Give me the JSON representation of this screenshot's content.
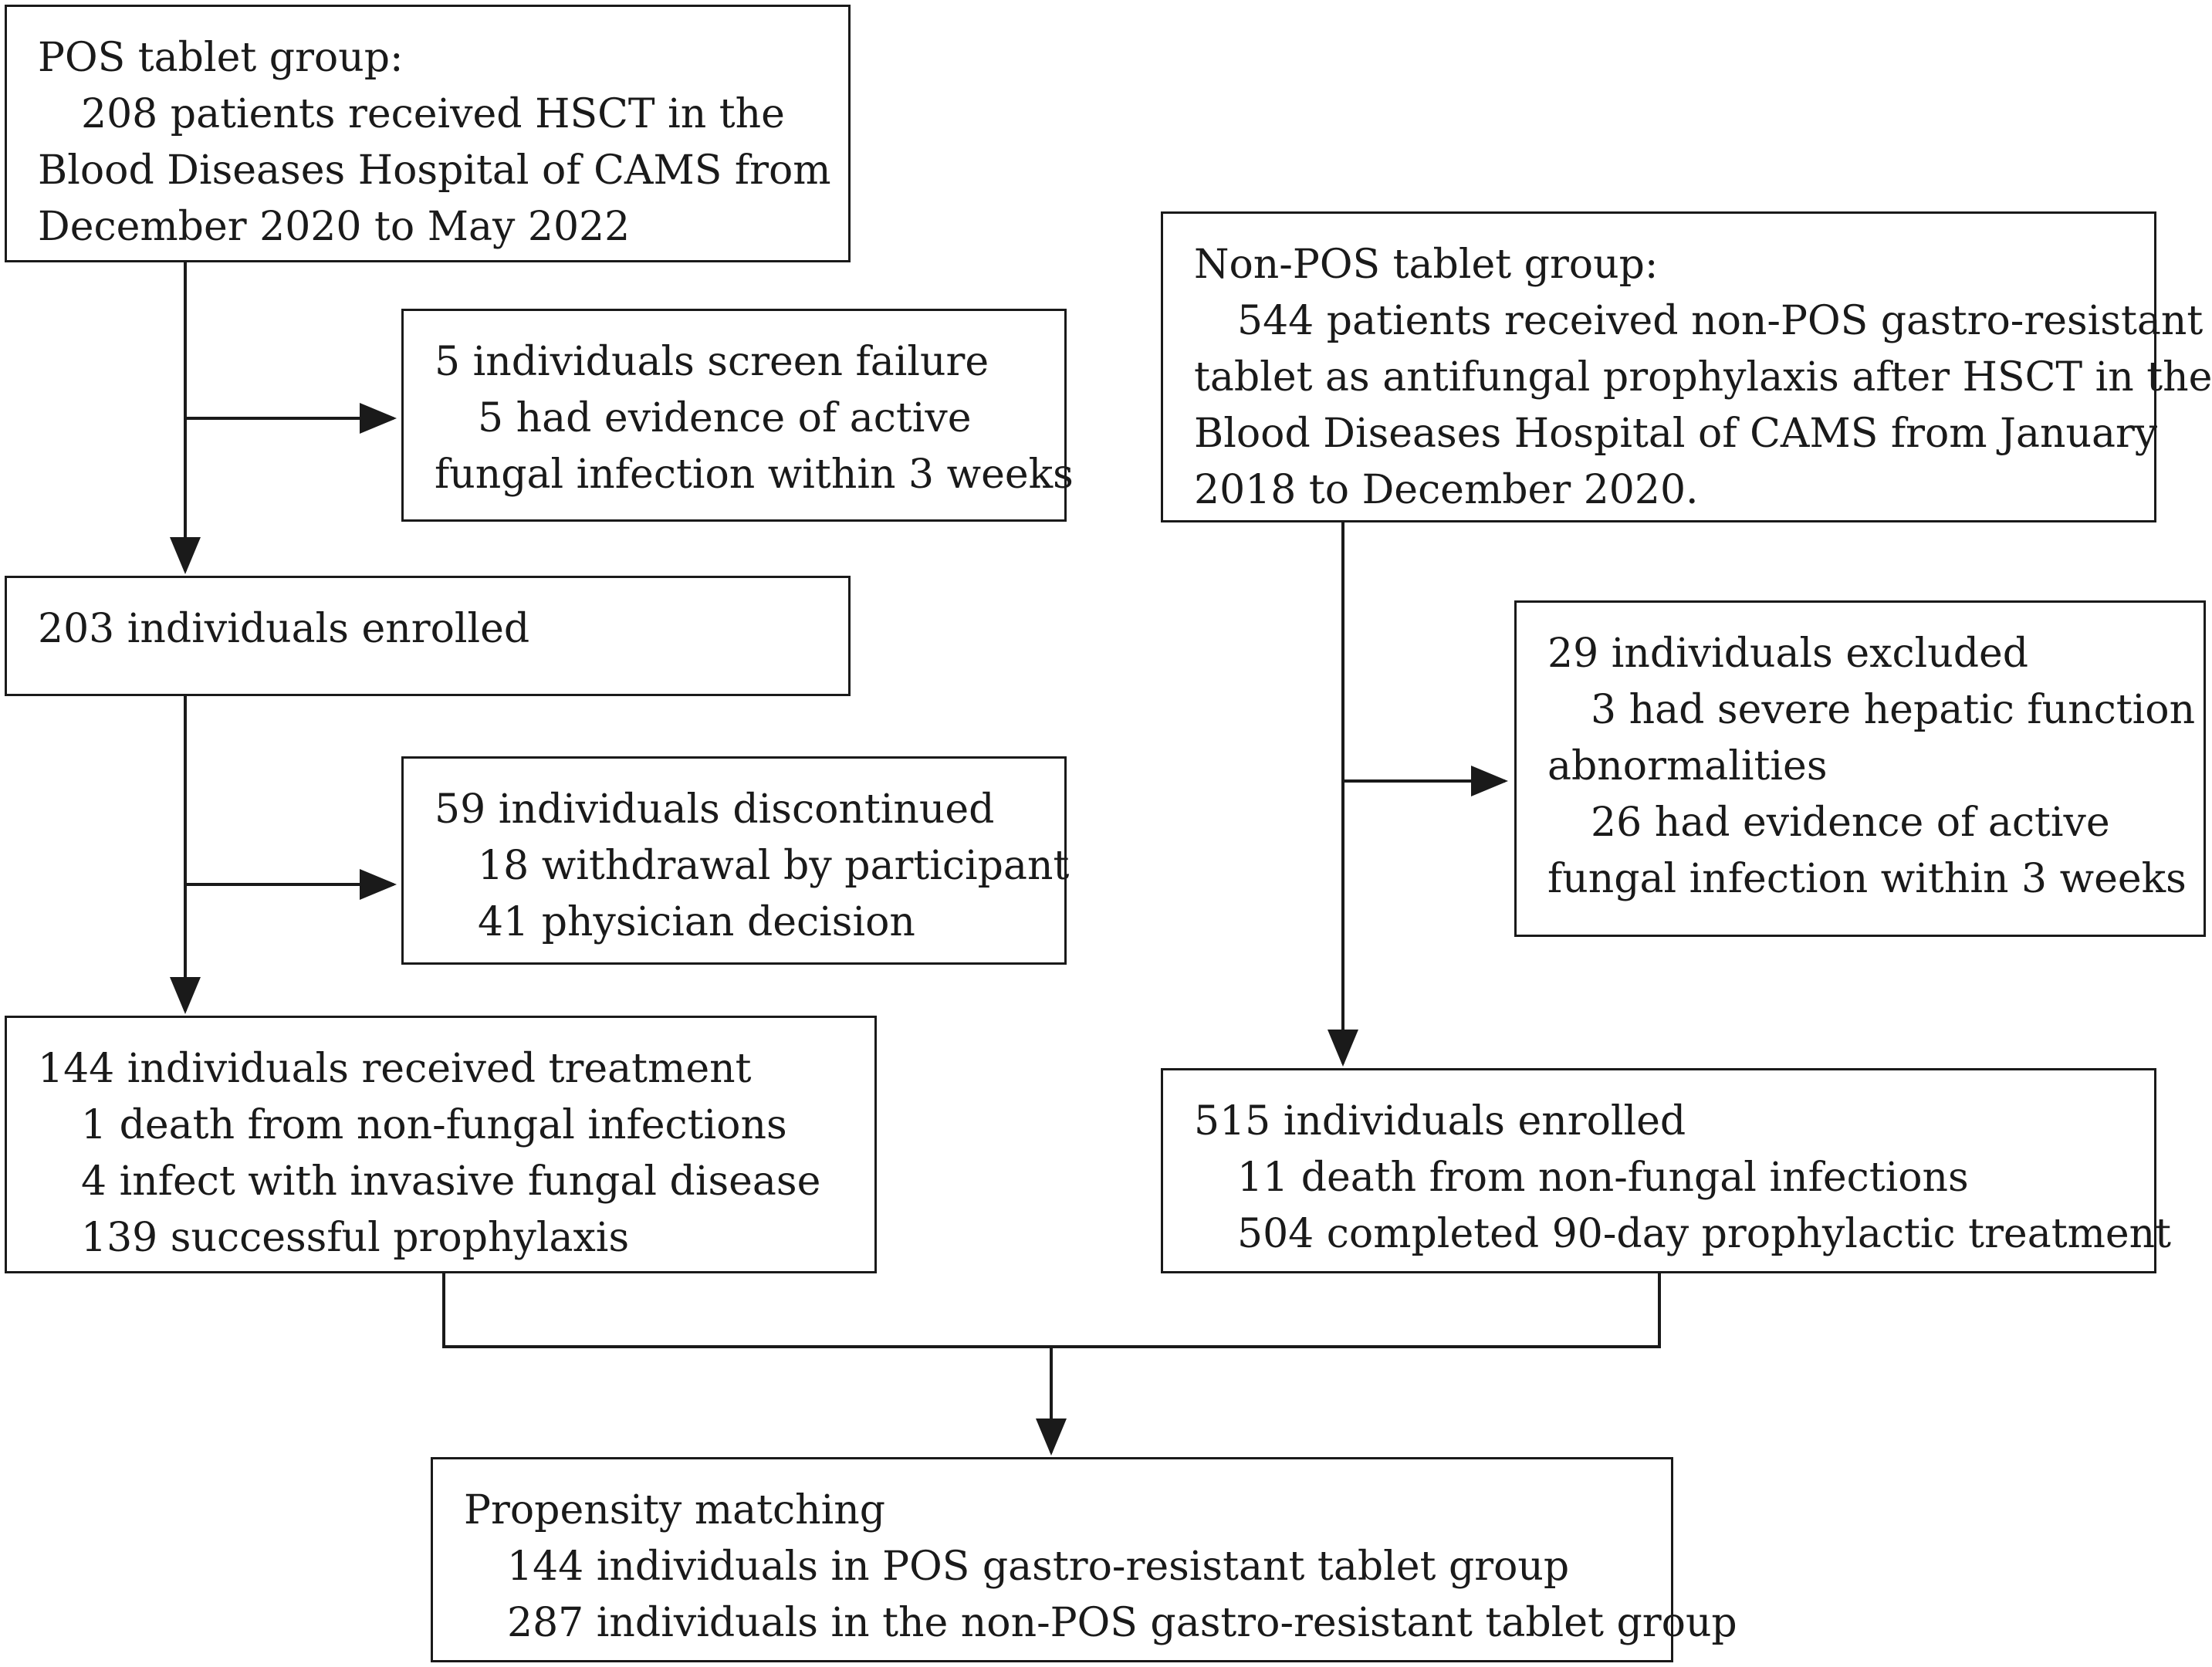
{
  "diagram": {
    "pos_group": {
      "title": "POS tablet group:",
      "line1": "208 patients received HSCT in the",
      "line2": "Blood Diseases Hospital of CAMS from",
      "line3": "December 2020 to May 2022"
    },
    "screen_failure": {
      "title": "5 individuals  screen failure",
      "line1": "5 had evidence of  active",
      "line2": "fungal infection within 3 weeks"
    },
    "enrolled_pos": {
      "title": "203 individuals enrolled"
    },
    "discontinued": {
      "title": "59 individuals  discontinued",
      "line1": "18 withdrawal by participant",
      "line2": "41 physician decision"
    },
    "received_treatment": {
      "title": "144 individuals received treatment",
      "line1": "1 death from non-fungal infections",
      "line2": "4 infect with invasive fungal disease",
      "line3": "139 successful prophylaxis"
    },
    "non_pos_group": {
      "title": "Non-POS tablet group:",
      "line1": "544 patients received non-POS gastro-resistant",
      "line2": "tablet as antifungal prophylaxis after HSCT in the",
      "line3": "Blood Diseases Hospital of CAMS from January",
      "line4": "2018 to December 2020."
    },
    "excluded": {
      "title": "29 individuals excluded",
      "line1": "3 had severe hepatic function",
      "line2": "abnormalities",
      "line3": "26 had evidence of  active",
      "line4": "fungal infection within 3 weeks"
    },
    "enrolled_non_pos": {
      "title": "515 individuals  enrolled",
      "line1": "11 death from non-fungal infections",
      "line2": "504 completed 90-day prophylactic treatment"
    },
    "propensity": {
      "title": "Propensity matching",
      "line1": "144 individuals in POS gastro-resistant tablet group",
      "line2": "287 individuals in the non-POS gastro-resistant tablet group"
    }
  }
}
